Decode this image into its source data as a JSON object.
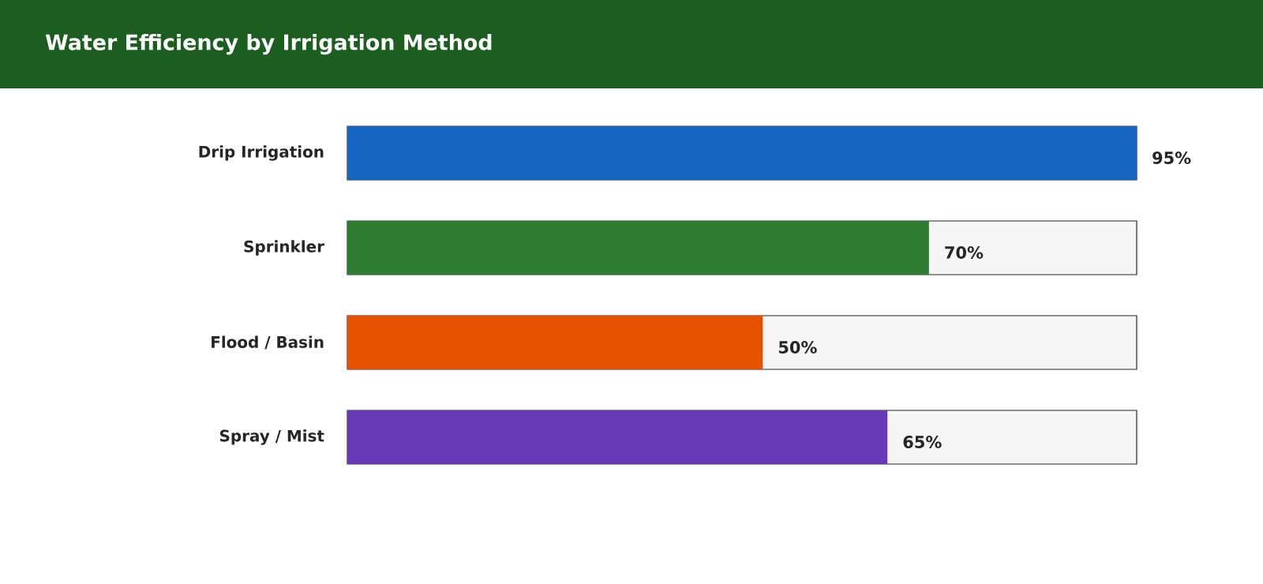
{
  "chart_data": {
    "type": "bar",
    "orientation": "horizontal",
    "title": "Water Efficiency by Irrigation Method",
    "categories": [
      "Drip Irrigation",
      "Sprinkler",
      "Flood / Basin",
      "Spray / Mist"
    ],
    "values": [
      95,
      70,
      50,
      65
    ],
    "colors": [
      "#1565c0",
      "#2e7d32",
      "#e65100",
      "#673ab7"
    ],
    "value_labels": [
      "95%",
      "70%",
      "50%",
      "65%"
    ],
    "xlim": [
      0,
      95
    ],
    "tick_labels": "y"
  }
}
